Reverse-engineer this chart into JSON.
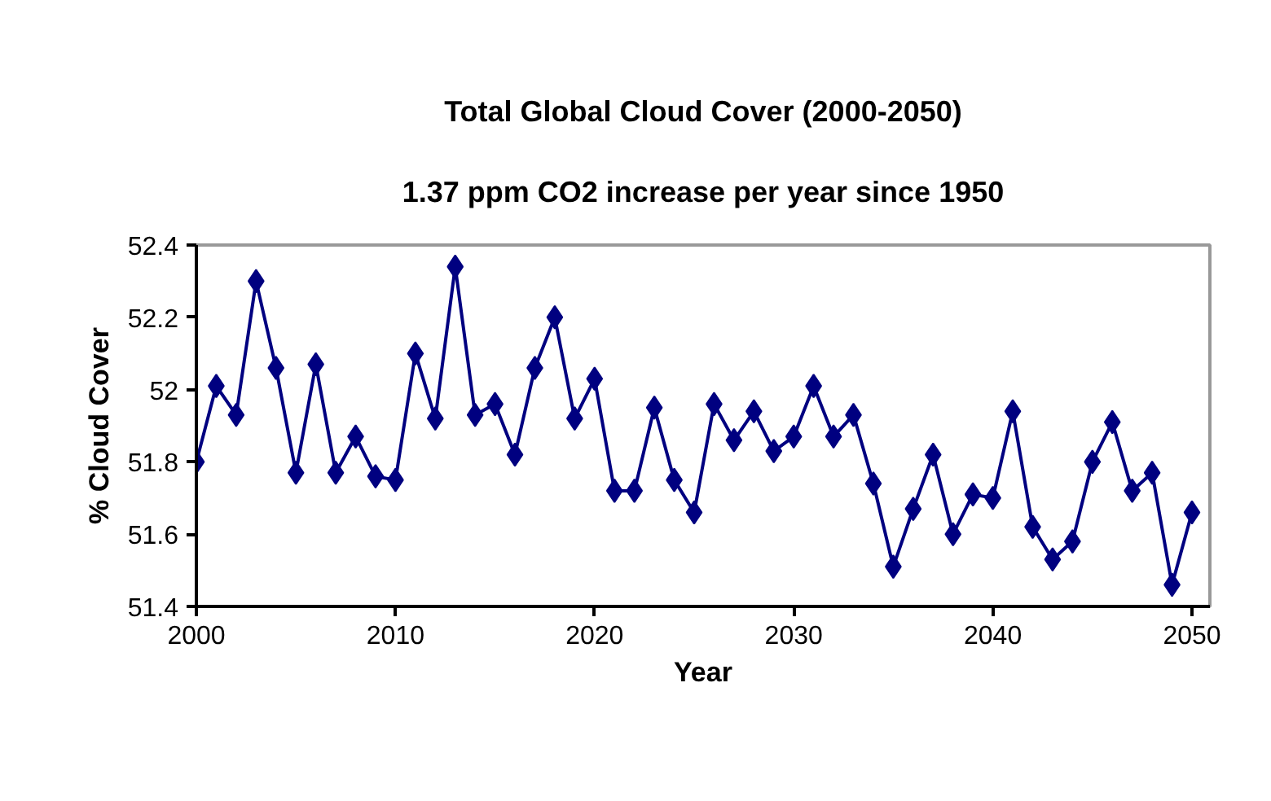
{
  "chart_data": {
    "type": "line",
    "title": "Total Global Cloud Cover (2000-2050)",
    "subtitle": "1.37 ppm CO2 increase per year since 1950",
    "xlabel": "Year",
    "ylabel": "% Cloud Cover",
    "x": [
      2000,
      2001,
      2002,
      2003,
      2004,
      2005,
      2006,
      2007,
      2008,
      2009,
      2010,
      2011,
      2012,
      2013,
      2014,
      2015,
      2016,
      2017,
      2018,
      2019,
      2020,
      2021,
      2022,
      2023,
      2024,
      2025,
      2026,
      2027,
      2028,
      2029,
      2030,
      2031,
      2032,
      2033,
      2034,
      2035,
      2036,
      2037,
      2038,
      2039,
      2040,
      2041,
      2042,
      2043,
      2044,
      2045,
      2046,
      2047,
      2048,
      2049,
      2050
    ],
    "series": [
      {
        "color": "#000080",
        "values": [
          51.8,
          52.01,
          51.93,
          52.3,
          52.06,
          51.77,
          52.07,
          51.77,
          51.87,
          51.76,
          51.75,
          52.1,
          51.92,
          52.34,
          51.93,
          51.96,
          51.82,
          52.06,
          52.2,
          51.92,
          52.03,
          51.72,
          51.72,
          51.95,
          51.75,
          51.66,
          51.96,
          51.86,
          51.94,
          51.83,
          51.87,
          52.01,
          51.87,
          51.93,
          51.74,
          51.51,
          51.67,
          51.82,
          51.6,
          51.71,
          51.7,
          51.94,
          51.62,
          51.53,
          51.58,
          51.8,
          51.91,
          51.72,
          51.77,
          51.46,
          51.66
        ]
      }
    ],
    "xlim": [
      2000,
      2050.9
    ],
    "ylim": [
      51.4,
      52.4
    ],
    "xticks": [
      2000,
      2010,
      2020,
      2030,
      2040,
      2050
    ],
    "yticks": [
      51.4,
      51.6,
      51.8,
      52,
      52.2,
      52.4
    ],
    "marker": "diamond",
    "line_style": "solid",
    "grid": false
  }
}
